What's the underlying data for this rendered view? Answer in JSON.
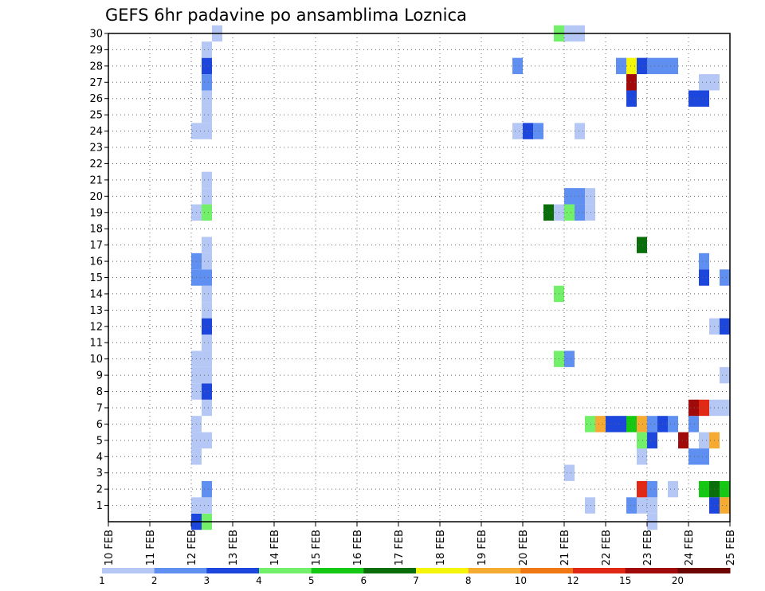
{
  "chart_data": {
    "type": "heatmap",
    "title": "GEFS 6hr padavine po ansamblima Loznica",
    "x_ticks": [
      "10 FEB",
      "11 FEB",
      "12 FEB",
      "13 FEB",
      "14 FEB",
      "15 FEB",
      "16 FEB",
      "17 FEB",
      "18 FEB",
      "19 FEB",
      "20 FEB",
      "21 FEB",
      "22 FEB",
      "23 FEB",
      "24 FEB",
      "25 FEB"
    ],
    "y_ticks": [
      "1",
      "2",
      "3",
      "4",
      "5",
      "6",
      "7",
      "8",
      "9",
      "10",
      "11",
      "12",
      "13",
      "14",
      "15",
      "16",
      "17",
      "18",
      "19",
      "20",
      "21",
      "22",
      "23",
      "24",
      "25",
      "26",
      "27",
      "28",
      "29",
      "30"
    ],
    "x_range": [
      "10 FEB 00Z",
      "25 FEB 00Z"
    ],
    "y_range": [
      0,
      30
    ],
    "grid": "dotted",
    "legend": {
      "placement": "bottom",
      "labels": [
        "1",
        "2",
        "3",
        "4",
        "5",
        "6",
        "7",
        "8",
        "10",
        "12",
        "15",
        "20"
      ],
      "colors": [
        "#b5c8f5",
        "#5f8ff0",
        "#1c46dc",
        "#73f06a",
        "#14c814",
        "#0a6e0a",
        "#f5f50a",
        "#f5aa32",
        "#f07814",
        "#e12814",
        "#a00a0a",
        "#6e0505"
      ]
    },
    "levels_index_note": "value index c refers to legend.colors[c-1]",
    "cells": [
      {
        "date": "12 FEB 00Z",
        "member": 0,
        "c": 3
      },
      {
        "date": "12 FEB 06Z",
        "member": 0,
        "c": 4
      },
      {
        "date": "12 FEB 00Z",
        "member": 1,
        "c": 1
      },
      {
        "date": "12 FEB 06Z",
        "member": 1,
        "c": 1
      },
      {
        "date": "12 FEB 06Z",
        "member": 2,
        "c": 2
      },
      {
        "date": "12 FEB 00Z",
        "member": 4,
        "c": 1
      },
      {
        "date": "12 FEB 00Z",
        "member": 5,
        "c": 1
      },
      {
        "date": "12 FEB 06Z",
        "member": 5,
        "c": 1
      },
      {
        "date": "12 FEB 00Z",
        "member": 6,
        "c": 1
      },
      {
        "date": "12 FEB 06Z",
        "member": 7,
        "c": 1
      },
      {
        "date": "12 FEB 00Z",
        "member": 8,
        "c": 1
      },
      {
        "date": "12 FEB 06Z",
        "member": 8,
        "c": 3
      },
      {
        "date": "12 FEB 00Z",
        "member": 9,
        "c": 1
      },
      {
        "date": "12 FEB 06Z",
        "member": 9,
        "c": 1
      },
      {
        "date": "12 FEB 00Z",
        "member": 10,
        "c": 1
      },
      {
        "date": "12 FEB 06Z",
        "member": 10,
        "c": 1
      },
      {
        "date": "12 FEB 06Z",
        "member": 11,
        "c": 1
      },
      {
        "date": "12 FEB 06Z",
        "member": 12,
        "c": 3
      },
      {
        "date": "12 FEB 06Z",
        "member": 13,
        "c": 1
      },
      {
        "date": "12 FEB 06Z",
        "member": 14,
        "c": 1
      },
      {
        "date": "12 FEB 00Z",
        "member": 15,
        "c": 2
      },
      {
        "date": "12 FEB 06Z",
        "member": 15,
        "c": 2
      },
      {
        "date": "12 FEB 00Z",
        "member": 16,
        "c": 2
      },
      {
        "date": "12 FEB 06Z",
        "member": 16,
        "c": 1
      },
      {
        "date": "12 FEB 06Z",
        "member": 17,
        "c": 1
      },
      {
        "date": "12 FEB 00Z",
        "member": 19,
        "c": 1
      },
      {
        "date": "12 FEB 06Z",
        "member": 19,
        "c": 4
      },
      {
        "date": "12 FEB 06Z",
        "member": 20,
        "c": 1
      },
      {
        "date": "12 FEB 06Z",
        "member": 21,
        "c": 1
      },
      {
        "date": "12 FEB 00Z",
        "member": 24,
        "c": 1
      },
      {
        "date": "12 FEB 06Z",
        "member": 24,
        "c": 1
      },
      {
        "date": "12 FEB 06Z",
        "member": 25,
        "c": 1
      },
      {
        "date": "12 FEB 06Z",
        "member": 26,
        "c": 1
      },
      {
        "date": "12 FEB 06Z",
        "member": 27,
        "c": 2
      },
      {
        "date": "12 FEB 06Z",
        "member": 28,
        "c": 3
      },
      {
        "date": "12 FEB 06Z",
        "member": 29,
        "c": 1
      },
      {
        "date": "12 FEB 12Z",
        "member": 30,
        "c": 1
      },
      {
        "date": "19 FEB 18Z",
        "member": 28,
        "c": 2
      },
      {
        "date": "19 FEB 18Z",
        "member": 24,
        "c": 1
      },
      {
        "date": "20 FEB 00Z",
        "member": 24,
        "c": 3
      },
      {
        "date": "20 FEB 06Z",
        "member": 24,
        "c": 2
      },
      {
        "date": "20 FEB 12Z",
        "member": 19,
        "c": 6
      },
      {
        "date": "20 FEB 18Z",
        "member": 19,
        "c": 1
      },
      {
        "date": "20 FEB 18Z",
        "member": 14,
        "c": 4
      },
      {
        "date": "20 FEB 18Z",
        "member": 30,
        "c": 4
      },
      {
        "date": "21 FEB 00Z",
        "member": 30,
        "c": 1
      },
      {
        "date": "21 FEB 06Z",
        "member": 30,
        "c": 1
      },
      {
        "date": "20 FEB 18Z",
        "member": 10,
        "c": 4
      },
      {
        "date": "21 FEB 00Z",
        "member": 10,
        "c": 2
      },
      {
        "date": "21 FEB 00Z",
        "member": 3,
        "c": 1
      },
      {
        "date": "21 FEB 00Z",
        "member": 19,
        "c": 4
      },
      {
        "date": "21 FEB 06Z",
        "member": 19,
        "c": 2
      },
      {
        "date": "21 FEB 12Z",
        "member": 19,
        "c": 1
      },
      {
        "date": "21 FEB 00Z",
        "member": 20,
        "c": 2
      },
      {
        "date": "21 FEB 06Z",
        "member": 20,
        "c": 2
      },
      {
        "date": "21 FEB 12Z",
        "member": 20,
        "c": 1
      },
      {
        "date": "21 FEB 06Z",
        "member": 24,
        "c": 1
      },
      {
        "date": "21 FEB 12Z",
        "member": 1,
        "c": 1
      },
      {
        "date": "21 FEB 12Z",
        "member": 6,
        "c": 4
      },
      {
        "date": "21 FEB 18Z",
        "member": 6,
        "c": 8
      },
      {
        "date": "22 FEB 00Z",
        "member": 6,
        "c": 3
      },
      {
        "date": "22 FEB 06Z",
        "member": 6,
        "c": 3
      },
      {
        "date": "22 FEB 12Z",
        "member": 6,
        "c": 5
      },
      {
        "date": "22 FEB 18Z",
        "member": 6,
        "c": 8
      },
      {
        "date": "23 FEB 00Z",
        "member": 6,
        "c": 2
      },
      {
        "date": "23 FEB 06Z",
        "member": 6,
        "c": 3
      },
      {
        "date": "23 FEB 12Z",
        "member": 6,
        "c": 2
      },
      {
        "date": "22 FEB 06Z",
        "member": 28,
        "c": 2
      },
      {
        "date": "22 FEB 12Z",
        "member": 28,
        "c": 7
      },
      {
        "date": "22 FEB 18Z",
        "member": 28,
        "c": 3
      },
      {
        "date": "23 FEB 00Z",
        "member": 28,
        "c": 2
      },
      {
        "date": "23 FEB 06Z",
        "member": 28,
        "c": 2
      },
      {
        "date": "23 FEB 12Z",
        "member": 28,
        "c": 2
      },
      {
        "date": "22 FEB 12Z",
        "member": 27,
        "c": 11
      },
      {
        "date": "22 FEB 12Z",
        "member": 26,
        "c": 3
      },
      {
        "date": "22 FEB 18Z",
        "member": 17,
        "c": 6
      },
      {
        "date": "22 FEB 12Z",
        "member": 1,
        "c": 2
      },
      {
        "date": "22 FEB 18Z",
        "member": 1,
        "c": 1
      },
      {
        "date": "23 FEB 00Z",
        "member": 1,
        "c": 1
      },
      {
        "date": "23 FEB 00Z",
        "member": 0,
        "c": 1
      },
      {
        "date": "22 FEB 18Z",
        "member": 2,
        "c": 10
      },
      {
        "date": "23 FEB 00Z",
        "member": 2,
        "c": 2
      },
      {
        "date": "22 FEB 18Z",
        "member": 4,
        "c": 1
      },
      {
        "date": "22 FEB 18Z",
        "member": 5,
        "c": 4
      },
      {
        "date": "23 FEB 00Z",
        "member": 5,
        "c": 3
      },
      {
        "date": "23 FEB 12Z",
        "member": 2,
        "c": 1
      },
      {
        "date": "23 FEB 18Z",
        "member": 5,
        "c": 11
      },
      {
        "date": "24 FEB 06Z",
        "member": 5,
        "c": 1
      },
      {
        "date": "24 FEB 12Z",
        "member": 5,
        "c": 8
      },
      {
        "date": "24 FEB 00Z",
        "member": 6,
        "c": 2
      },
      {
        "date": "24 FEB 00Z",
        "member": 4,
        "c": 2
      },
      {
        "date": "24 FEB 06Z",
        "member": 4,
        "c": 2
      },
      {
        "date": "24 FEB 00Z",
        "member": 7,
        "c": 11
      },
      {
        "date": "24 FEB 06Z",
        "member": 7,
        "c": 10
      },
      {
        "date": "24 FEB 12Z",
        "member": 7,
        "c": 1
      },
      {
        "date": "24 FEB 18Z",
        "member": 7,
        "c": 1
      },
      {
        "date": "24 FEB 06Z",
        "member": 2,
        "c": 5
      },
      {
        "date": "24 FEB 12Z",
        "member": 2,
        "c": 6
      },
      {
        "date": "24 FEB 18Z",
        "member": 2,
        "c": 5
      },
      {
        "date": "24 FEB 12Z",
        "member": 1,
        "c": 3
      },
      {
        "date": "24 FEB 18Z",
        "member": 1,
        "c": 8
      },
      {
        "date": "24 FEB 00Z",
        "member": 26,
        "c": 3
      },
      {
        "date": "24 FEB 06Z",
        "member": 26,
        "c": 3
      },
      {
        "date": "24 FEB 06Z",
        "member": 27,
        "c": 1
      },
      {
        "date": "24 FEB 12Z",
        "member": 27,
        "c": 1
      },
      {
        "date": "24 FEB 06Z",
        "member": 16,
        "c": 2
      },
      {
        "date": "24 FEB 06Z",
        "member": 15,
        "c": 3
      },
      {
        "date": "24 FEB 18Z",
        "member": 15,
        "c": 2
      },
      {
        "date": "24 FEB 12Z",
        "member": 12,
        "c": 1
      },
      {
        "date": "24 FEB 18Z",
        "member": 12,
        "c": 3
      },
      {
        "date": "24 FEB 18Z",
        "member": 9,
        "c": 1
      }
    ]
  }
}
